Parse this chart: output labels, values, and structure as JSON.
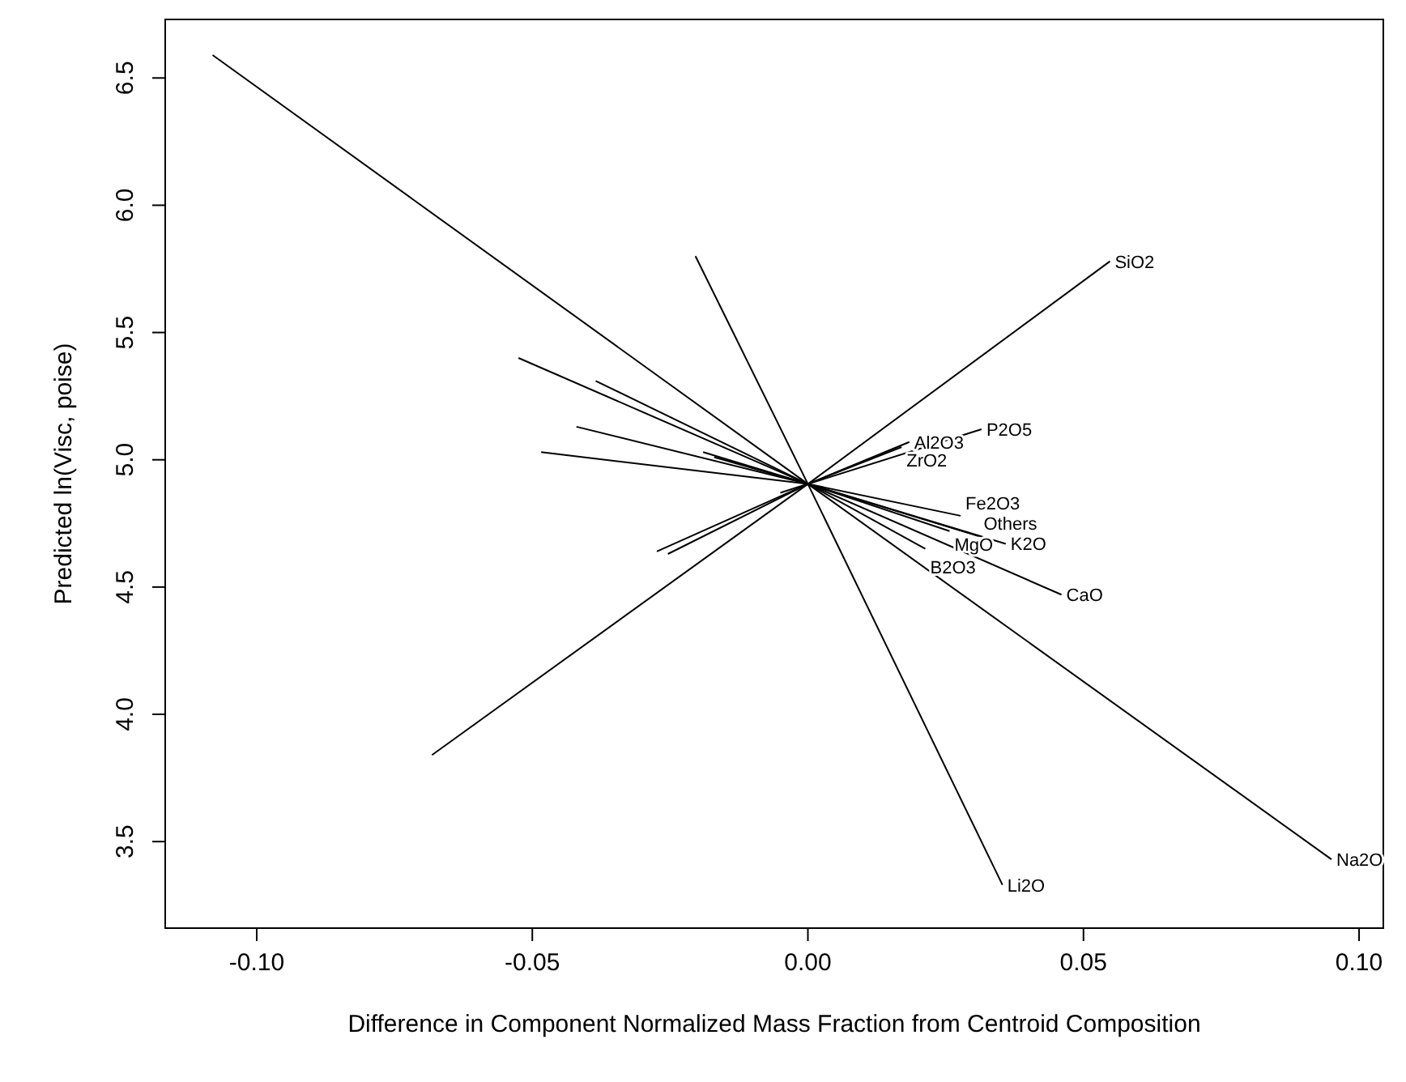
{
  "chart_data": {
    "type": "line",
    "xlabel": "Difference in Component Normalized Mass Fraction from Centroid Composition",
    "ylabel": "Predicted ln(Visc, poise)",
    "xlim": [
      -0.1166,
      0.1044
    ],
    "ylim": [
      3.16,
      6.73
    ],
    "xticks": [
      {
        "value": -0.1,
        "label": "-0.10"
      },
      -0.05,
      {
        "value": 0,
        "label": "0.00"
      },
      0.05,
      {
        "value": 0.1,
        "label": "0.10"
      }
    ],
    "yticks": [
      3.5,
      {
        "value": 4,
        "label": "4.0"
      },
      4.5,
      {
        "value": 5,
        "label": "5.0"
      },
      5.5,
      {
        "value": 6,
        "label": "6.0"
      },
      6.5
    ],
    "grid": false,
    "marker": "none",
    "line_style": "solid",
    "series": [
      {
        "name": "SiO2",
        "color": "#000000",
        "x": [
          -0.0682,
          0,
          0.0548
        ],
        "values": [
          3.84,
          4.905,
          5.78
        ]
      },
      {
        "name": "Na2O",
        "color": "#000000",
        "x": [
          -0.108,
          0,
          0.095
        ],
        "values": [
          6.59,
          4.905,
          3.43
        ]
      },
      {
        "name": "Li2O",
        "color": "#000000",
        "x": [
          -0.0204,
          0,
          0.0353
        ],
        "values": [
          5.8,
          4.905,
          3.33
        ]
      },
      {
        "name": "CaO",
        "color": "#000000",
        "x": [
          -0.0525,
          0,
          0.046
        ],
        "values": [
          5.4,
          4.905,
          4.47
        ]
      },
      {
        "name": "B2O3",
        "color": "#000000",
        "x": [
          -0.0385,
          0,
          0.0213
        ],
        "values": [
          5.31,
          4.905,
          4.65
        ]
      },
      {
        "name": "Fe2O3",
        "color": "#000000",
        "x": [
          -0.042,
          0,
          0.0277
        ],
        "values": [
          5.13,
          4.905,
          4.78
        ]
      },
      {
        "name": "MgO",
        "color": "#000000",
        "x": [
          -0.019,
          0,
          0.0257
        ],
        "values": [
          5.03,
          4.905,
          4.72
        ]
      },
      {
        "name": "Others",
        "color": "#000000",
        "x": [
          -0.017,
          0,
          0.031
        ],
        "values": [
          5.01,
          4.905,
          4.7
        ]
      },
      {
        "name": "K2O",
        "color": "#000000",
        "x": [
          -0.0484,
          0,
          0.0359
        ],
        "values": [
          5.03,
          4.905,
          4.67
        ]
      },
      {
        "name": "Al2O3",
        "color": "#000000",
        "x": [
          -0.0274,
          0,
          0.0184
        ],
        "values": [
          4.64,
          4.905,
          5.07
        ]
      },
      {
        "name": "ZrO2",
        "color": "#000000",
        "x": [
          -0.0254,
          0,
          0.017
        ],
        "values": [
          4.63,
          4.905,
          5.05
        ]
      },
      {
        "name": "P2O5",
        "color": "#000000",
        "x": [
          -0.005,
          0,
          0.0315
        ],
        "values": [
          4.87,
          4.905,
          5.12
        ]
      }
    ]
  }
}
